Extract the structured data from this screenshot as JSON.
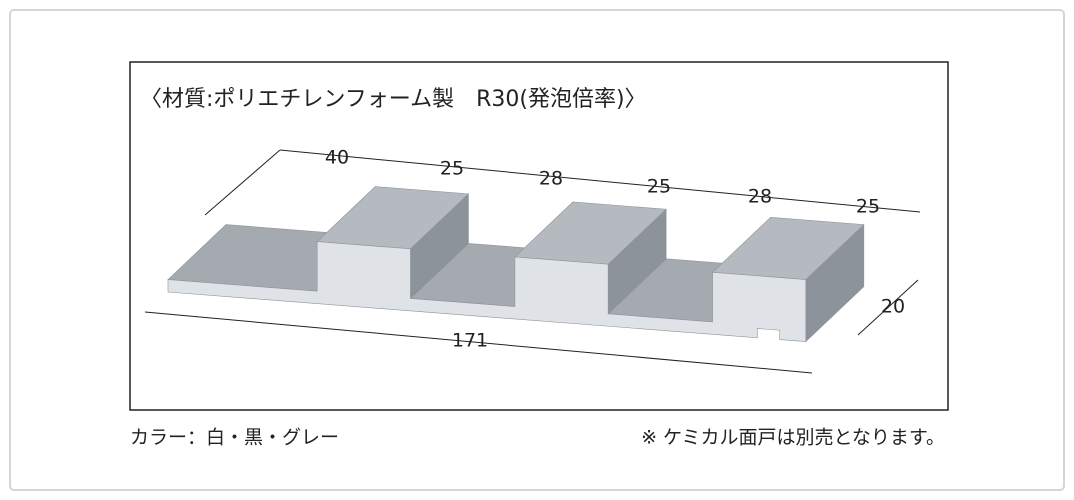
{
  "title": "〈材質:ポリエチレンフォーム製　R30(発泡倍率)〉",
  "dimensions": {
    "top": [
      40,
      25,
      28,
      25,
      28,
      25
    ],
    "length": 171,
    "height": 20
  },
  "footer": {
    "colors": "カラー：白・黒・グレー",
    "note": "※ ケミカル面戸は別売となります。"
  }
}
